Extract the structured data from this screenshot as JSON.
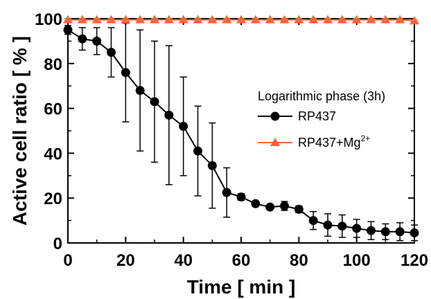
{
  "chart_data": {
    "type": "line",
    "xlabel": "Time  [ min ]",
    "ylabel": "Active cell ratio  [ % ]",
    "xlim": [
      0,
      120
    ],
    "ylim": [
      0,
      100
    ],
    "xticks": [
      "0",
      "20",
      "40",
      "60",
      "80",
      "100",
      "120"
    ],
    "yticks": [
      "0",
      "20",
      "40",
      "60",
      "80",
      "100"
    ],
    "grid": false,
    "legend_position": "right",
    "legend_title": "Logarithmic phase (3h)",
    "x": [
      0,
      5,
      10,
      15,
      20,
      25,
      30,
      35,
      40,
      45,
      50,
      55,
      60,
      65,
      70,
      75,
      80,
      85,
      90,
      95,
      100,
      105,
      110,
      115,
      120
    ],
    "series": [
      {
        "name": "RP437",
        "name_main": "RP437",
        "name_sup": "",
        "color": "#000000",
        "marker": "circle",
        "values": [
          95,
          91,
          90,
          85,
          76,
          68,
          63,
          57,
          52,
          41,
          34.5,
          22.5,
          20.5,
          17.5,
          16,
          16.5,
          15,
          10,
          8,
          7.5,
          6.5,
          5.5,
          5,
          5,
          4.5
        ],
        "errors": [
          2,
          5,
          6,
          11,
          22,
          27,
          27,
          31,
          22,
          20,
          19,
          11,
          1.5,
          1,
          1,
          2,
          1.5,
          4,
          5,
          5,
          4,
          4,
          3.5,
          4,
          3.5
        ]
      },
      {
        "name": "RP437+Mg2+",
        "name_main": "RP437+Mg",
        "name_sup": "2+",
        "color": "#f2683a",
        "marker": "triangle",
        "values": [
          99.5,
          99.5,
          99.5,
          99.5,
          99.5,
          99.5,
          99.5,
          99.5,
          99.5,
          99.5,
          99.5,
          99.5,
          99.5,
          99.5,
          99.5,
          99.5,
          99.5,
          99.5,
          99.5,
          99.5,
          99.5,
          99.5,
          99.5,
          99.5,
          99
        ],
        "errors": [
          0.5,
          0.5,
          0.5,
          0.5,
          0.5,
          0.5,
          0.5,
          0.5,
          0.5,
          0.5,
          0.5,
          0.5,
          0.5,
          0.5,
          0.5,
          0.5,
          0.5,
          0.5,
          0.5,
          0.5,
          0.5,
          0.5,
          0.5,
          0.5,
          0.5
        ]
      }
    ]
  }
}
